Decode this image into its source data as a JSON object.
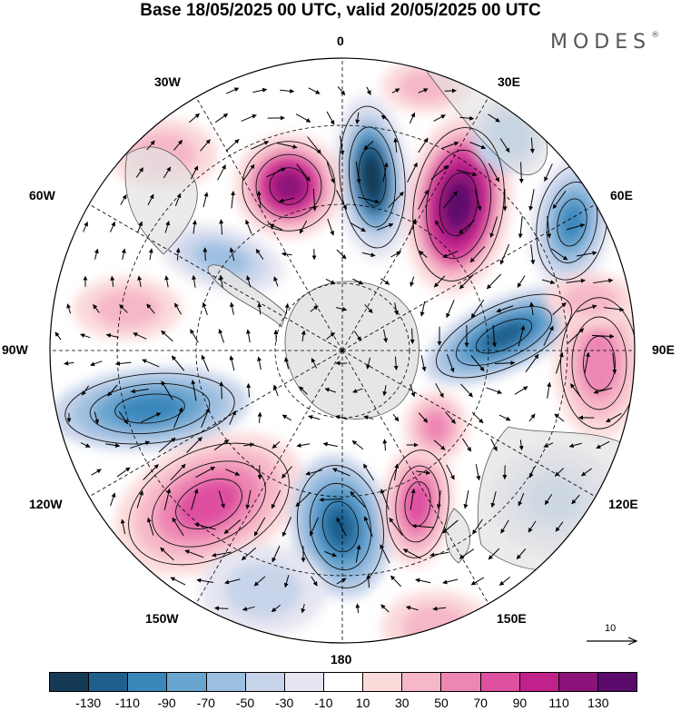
{
  "title": "Base 18/05/2025 00 UTC, valid 20/05/2025 00 UTC",
  "brand": "MODES",
  "brand_mark": "®",
  "map": {
    "projection": "south-polar-stereographic",
    "longitude_labels": {
      "lon_0": "0",
      "lon_30e": "30E",
      "lon_60e": "60E",
      "lon_90e": "90E",
      "lon_120e": "120E",
      "lon_150e": "150E",
      "lon_180": "180",
      "lon_150w": "150W",
      "lon_120w": "120W",
      "lon_90w": "90W",
      "lon_60w": "60W",
      "lon_30w": "30W"
    },
    "reference_vector": "10",
    "colors": {
      "land": "#e2e2e2",
      "coast": "#555555",
      "grid": "#000000"
    }
  },
  "colorbar": {
    "colors": [
      "#153a55",
      "#1f5f8c",
      "#3a87bc",
      "#6aa5d0",
      "#9dbfe0",
      "#c8d4ea",
      "#e6e6f2",
      "#ffffff",
      "#fbdada",
      "#f6b7c8",
      "#ee86b4",
      "#de50a0",
      "#c1218b",
      "#8b1379",
      "#5a0a6a"
    ],
    "tick_labels": [
      "-130",
      "-110",
      "-90",
      "-70",
      "-50",
      "-30",
      "-10",
      "10",
      "30",
      "50",
      "70",
      "90",
      "110",
      "130"
    ]
  }
}
